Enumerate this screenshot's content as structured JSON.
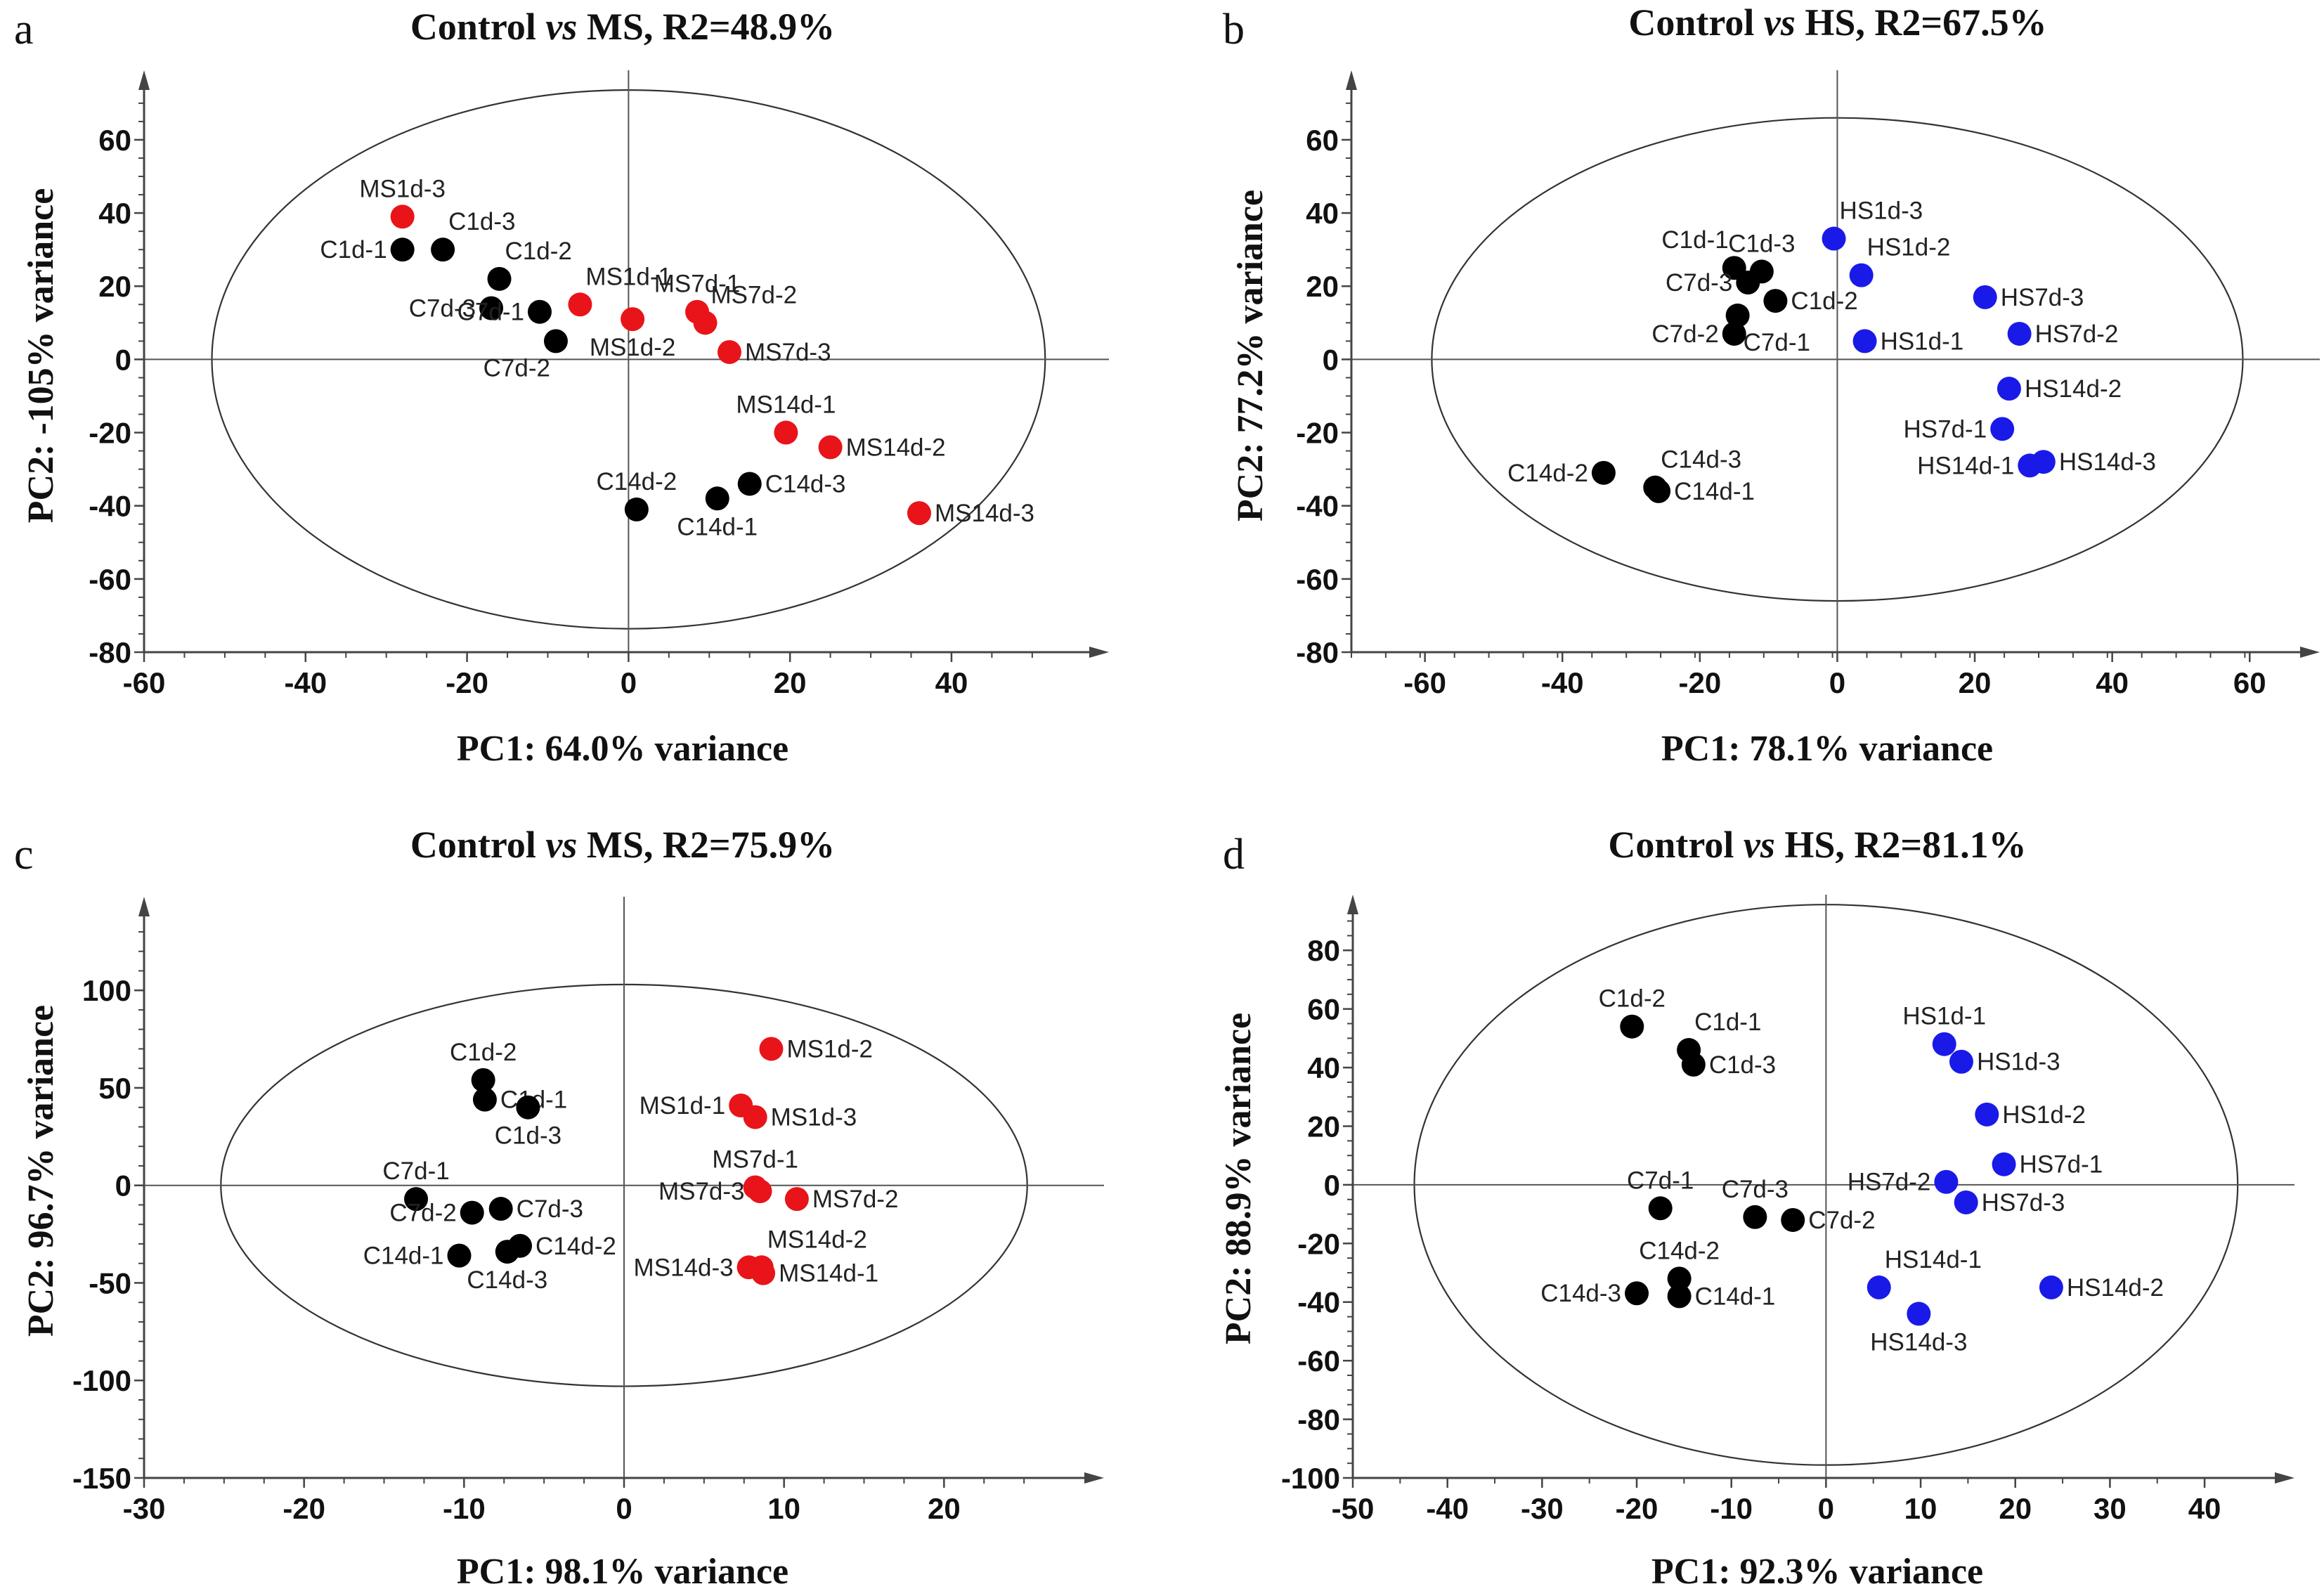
{
  "colors": {
    "C": "#000000",
    "MS": "#e8141a",
    "HS": "#1a1ae8",
    "axis": "#555555",
    "ellipse": "#333333"
  },
  "chart_data": [
    {
      "type": "scatter",
      "panel_letter": "a",
      "title": {
        "prefix": "Control ",
        "italic": "vs",
        "suffix": " MS, R2=48.9%"
      },
      "xlabel": "PC1: 64.0% variance",
      "ylabel": "PC2: -105% variance",
      "xlim": [
        -60,
        59.5
      ],
      "ylim": [
        -80,
        79
      ],
      "xticks": [
        -60,
        -40,
        -20,
        0,
        20,
        40
      ],
      "yticks": [
        -80,
        -60,
        -40,
        -20,
        0,
        20,
        40,
        60
      ],
      "minor_step": 5,
      "ellipse": {
        "center": [
          0,
          0
        ],
        "semi_axes": [
          51.6,
          73.6
        ]
      },
      "points": [
        {
          "label": "MS1d-3",
          "x": -28,
          "y": 39,
          "group": "MS",
          "pos": "a"
        },
        {
          "label": "C1d-1",
          "x": -28,
          "y": 30,
          "group": "C",
          "pos": "l"
        },
        {
          "label": "C1d-3",
          "x": -23,
          "y": 30,
          "group": "C",
          "pos": "ar"
        },
        {
          "label": "C1d-2",
          "x": -16,
          "y": 22,
          "group": "C",
          "pos": "ar"
        },
        {
          "label": "C7d-3",
          "x": -17,
          "y": 14,
          "group": "C",
          "pos": "l"
        },
        {
          "label": "C7d-1",
          "x": -11,
          "y": 13,
          "group": "C",
          "pos": "l"
        },
        {
          "label": "C7d-2",
          "x": -9,
          "y": 5,
          "group": "C",
          "pos": "bl"
        },
        {
          "label": "MS1d-1",
          "x": -6,
          "y": 15,
          "group": "MS",
          "pos": "ar"
        },
        {
          "label": "MS1d-2",
          "x": 0.5,
          "y": 11,
          "group": "MS",
          "pos": "b"
        },
        {
          "label": "MS7d-1",
          "x": 8.5,
          "y": 13,
          "group": "MS",
          "pos": "a"
        },
        {
          "label": "MS7d-2",
          "x": 9.5,
          "y": 10,
          "group": "MS",
          "pos": "ar"
        },
        {
          "label": "MS7d-3",
          "x": 12.5,
          "y": 2,
          "group": "MS",
          "pos": "r"
        },
        {
          "label": "MS14d-1",
          "x": 19.5,
          "y": -20,
          "group": "MS",
          "pos": "a"
        },
        {
          "label": "MS14d-2",
          "x": 25,
          "y": -24,
          "group": "MS",
          "pos": "r"
        },
        {
          "label": "C14d-2",
          "x": 1,
          "y": -41,
          "group": "C",
          "pos": "a"
        },
        {
          "label": "C14d-1",
          "x": 11,
          "y": -38,
          "group": "C",
          "pos": "b"
        },
        {
          "label": "C14d-3",
          "x": 15,
          "y": -34,
          "group": "C",
          "pos": "r"
        },
        {
          "label": "MS14d-3",
          "x": 36,
          "y": -42,
          "group": "MS",
          "pos": "r"
        }
      ]
    },
    {
      "type": "scatter",
      "panel_letter": "b",
      "title": {
        "prefix": "Control ",
        "italic": "vs",
        "suffix": " HS, R2=67.5%"
      },
      "xlabel": "PC1: 78.1% variance",
      "ylabel": "PC2: 77.2% variance",
      "xlim": [
        -70.7,
        70.2
      ],
      "ylim": [
        -80,
        79
      ],
      "xticks": [
        -60,
        -40,
        -20,
        0,
        20,
        40,
        60
      ],
      "yticks": [
        -80,
        -60,
        -40,
        -20,
        0,
        20,
        40,
        60
      ],
      "minor_step": 5,
      "ellipse": {
        "center": [
          0,
          0
        ],
        "semi_axes": [
          59,
          66
        ]
      },
      "points": [
        {
          "label": "C1d-1",
          "x": -15,
          "y": 25,
          "group": "C",
          "pos": "al"
        },
        {
          "label": "C1d-3",
          "x": -11,
          "y": 24,
          "group": "C",
          "pos": "a"
        },
        {
          "label": "C7d-3",
          "x": -13,
          "y": 21,
          "group": "C",
          "pos": "l"
        },
        {
          "label": "C1d-2",
          "x": -9,
          "y": 16,
          "group": "C",
          "pos": "r"
        },
        {
          "label": "C7d-1",
          "x": -14.5,
          "y": 12,
          "group": "C",
          "pos": "br"
        },
        {
          "label": "C7d-2",
          "x": -15,
          "y": 7,
          "group": "C",
          "pos": "l"
        },
        {
          "label": "HS1d-3",
          "x": -0.5,
          "y": 33,
          "group": "HS",
          "pos": "ar"
        },
        {
          "label": "HS1d-2",
          "x": 3.5,
          "y": 23,
          "group": "HS",
          "pos": "ar"
        },
        {
          "label": "HS1d-1",
          "x": 4,
          "y": 5,
          "group": "HS",
          "pos": "r"
        },
        {
          "label": "HS7d-3",
          "x": 21.5,
          "y": 17,
          "group": "HS",
          "pos": "r"
        },
        {
          "label": "HS7d-2",
          "x": 26.5,
          "y": 7,
          "group": "HS",
          "pos": "r"
        },
        {
          "label": "HS14d-2",
          "x": 25,
          "y": -8,
          "group": "HS",
          "pos": "r"
        },
        {
          "label": "HS7d-1",
          "x": 24,
          "y": -19,
          "group": "HS",
          "pos": "l"
        },
        {
          "label": "HS14d-1",
          "x": 28,
          "y": -29,
          "group": "HS",
          "pos": "l"
        },
        {
          "label": "HS14d-3",
          "x": 30,
          "y": -28,
          "group": "HS",
          "pos": "r"
        },
        {
          "label": "C14d-2",
          "x": -34,
          "y": -31,
          "group": "C",
          "pos": "l"
        },
        {
          "label": "C14d-3",
          "x": -26.5,
          "y": -35,
          "group": "C",
          "pos": "ar"
        },
        {
          "label": "C14d-1",
          "x": -26,
          "y": -36,
          "group": "C",
          "pos": "r"
        }
      ]
    },
    {
      "type": "scatter",
      "panel_letter": "c",
      "title": {
        "prefix": "Control ",
        "italic": "vs",
        "suffix": " MS, R2=75.9%"
      },
      "xlabel": "PC1: 98.1% variance",
      "ylabel": "PC2: 96.7% variance",
      "xlim": [
        -30,
        30
      ],
      "ylim": [
        -150,
        148
      ],
      "xticks": [
        -30,
        -20,
        -10,
        0,
        10,
        20
      ],
      "yticks": [
        -150,
        -100,
        -50,
        0,
        50,
        100
      ],
      "minor_step": [
        2.5,
        10
      ],
      "ellipse": {
        "center": [
          0,
          0
        ],
        "semi_axes": [
          25.2,
          103
        ]
      },
      "points": [
        {
          "label": "C1d-2",
          "x": -8.8,
          "y": 54,
          "group": "C",
          "pos": "a"
        },
        {
          "label": "C1d-1",
          "x": -8.7,
          "y": 44,
          "group": "C",
          "pos": "r"
        },
        {
          "label": "C1d-3",
          "x": -6,
          "y": 40,
          "group": "C",
          "pos": "b"
        },
        {
          "label": "C7d-1",
          "x": -13,
          "y": -7,
          "group": "C",
          "pos": "a"
        },
        {
          "label": "C7d-2",
          "x": -9.5,
          "y": -14,
          "group": "C",
          "pos": "l"
        },
        {
          "label": "C7d-3",
          "x": -7.7,
          "y": -12,
          "group": "C",
          "pos": "r"
        },
        {
          "label": "C14d-1",
          "x": -10.3,
          "y": -36,
          "group": "C",
          "pos": "l"
        },
        {
          "label": "C14d-3",
          "x": -7.3,
          "y": -34,
          "group": "C",
          "pos": "b"
        },
        {
          "label": "C14d-2",
          "x": -6.5,
          "y": -31,
          "group": "C",
          "pos": "r"
        },
        {
          "label": "MS1d-2",
          "x": 9.2,
          "y": 70,
          "group": "MS",
          "pos": "r"
        },
        {
          "label": "MS1d-1",
          "x": 7.3,
          "y": 41,
          "group": "MS",
          "pos": "l"
        },
        {
          "label": "MS1d-3",
          "x": 8.2,
          "y": 35,
          "group": "MS",
          "pos": "r"
        },
        {
          "label": "MS7d-1",
          "x": 8.2,
          "y": -1,
          "group": "MS",
          "pos": "a"
        },
        {
          "label": "MS7d-3",
          "x": 8.5,
          "y": -3,
          "group": "MS",
          "pos": "l"
        },
        {
          "label": "MS7d-2",
          "x": 10.8,
          "y": -7,
          "group": "MS",
          "pos": "r"
        },
        {
          "label": "MS14d-2",
          "x": 8.6,
          "y": -42,
          "group": "MS",
          "pos": "ar"
        },
        {
          "label": "MS14d-3",
          "x": 7.8,
          "y": -42,
          "group": "MS",
          "pos": "l"
        },
        {
          "label": "MS14d-1",
          "x": 8.7,
          "y": -45,
          "group": "MS",
          "pos": "r"
        }
      ]
    },
    {
      "type": "scatter",
      "panel_letter": "d",
      "title": {
        "prefix": "Control ",
        "italic": "vs",
        "suffix": " HS, R2=81.1%"
      },
      "xlabel": "PC1: 92.3% variance",
      "ylabel": "PC2: 88.9% variance",
      "xlim": [
        -50,
        49.5
      ],
      "ylim": [
        -100,
        99
      ],
      "xticks": [
        -50,
        -40,
        -30,
        -20,
        -10,
        0,
        10,
        20,
        30,
        40
      ],
      "yticks": [
        -100,
        -80,
        -60,
        -40,
        -20,
        0,
        20,
        40,
        60,
        80
      ],
      "minor_step": 5,
      "ellipse": {
        "center": [
          0,
          0
        ],
        "semi_axes": [
          43.5,
          95.6
        ]
      },
      "points": [
        {
          "label": "C1d-2",
          "x": -20.5,
          "y": 54,
          "group": "C",
          "pos": "a"
        },
        {
          "label": "C1d-1",
          "x": -14.5,
          "y": 46,
          "group": "C",
          "pos": "ar"
        },
        {
          "label": "C1d-3",
          "x": -14,
          "y": 41,
          "group": "C",
          "pos": "r"
        },
        {
          "label": "C7d-1",
          "x": -17.5,
          "y": -8,
          "group": "C",
          "pos": "a"
        },
        {
          "label": "C7d-3",
          "x": -7.5,
          "y": -11,
          "group": "C",
          "pos": "a"
        },
        {
          "label": "C7d-2",
          "x": -3.5,
          "y": -12,
          "group": "C",
          "pos": "r"
        },
        {
          "label": "C14d-2",
          "x": -15.5,
          "y": -32,
          "group": "C",
          "pos": "a"
        },
        {
          "label": "C14d-1",
          "x": -15.5,
          "y": -38,
          "group": "C",
          "pos": "r"
        },
        {
          "label": "C14d-3",
          "x": -20,
          "y": -37,
          "group": "C",
          "pos": "l"
        },
        {
          "label": "HS1d-1",
          "x": 12.5,
          "y": 48,
          "group": "HS",
          "pos": "a"
        },
        {
          "label": "HS1d-3",
          "x": 14.3,
          "y": 42,
          "group": "HS",
          "pos": "r"
        },
        {
          "label": "HS1d-2",
          "x": 17,
          "y": 24,
          "group": "HS",
          "pos": "r"
        },
        {
          "label": "HS7d-1",
          "x": 18.8,
          "y": 7,
          "group": "HS",
          "pos": "r"
        },
        {
          "label": "HS7d-2",
          "x": 12.7,
          "y": 1,
          "group": "HS",
          "pos": "l"
        },
        {
          "label": "HS7d-3",
          "x": 14.8,
          "y": -6,
          "group": "HS",
          "pos": "r"
        },
        {
          "label": "HS14d-1",
          "x": 5.6,
          "y": -35,
          "group": "HS",
          "pos": "ar"
        },
        {
          "label": "HS14d-3",
          "x": 9.8,
          "y": -44,
          "group": "HS",
          "pos": "b"
        },
        {
          "label": "HS14d-2",
          "x": 23.8,
          "y": -35,
          "group": "HS",
          "pos": "r"
        }
      ]
    }
  ]
}
